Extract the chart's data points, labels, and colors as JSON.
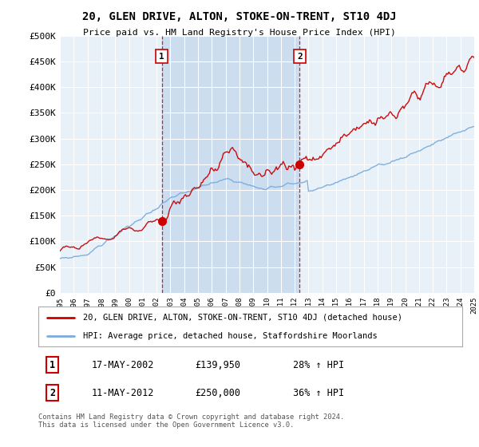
{
  "title": "20, GLEN DRIVE, ALTON, STOKE-ON-TRENT, ST10 4DJ",
  "subtitle": "Price paid vs. HM Land Registry's House Price Index (HPI)",
  "ylim": [
    0,
    500000
  ],
  "yticks": [
    0,
    50000,
    100000,
    150000,
    200000,
    250000,
    300000,
    350000,
    400000,
    450000,
    500000
  ],
  "ytick_labels": [
    "£0",
    "£50K",
    "£100K",
    "£150K",
    "£200K",
    "£250K",
    "£300K",
    "£350K",
    "£400K",
    "£450K",
    "£500K"
  ],
  "sale1_date": 2002.37,
  "sale1_price": 139950,
  "sale1_label": "1",
  "sale2_date": 2012.36,
  "sale2_price": 250000,
  "sale2_label": "2",
  "line_color_property": "#cc0000",
  "line_color_hpi": "#7aaddd",
  "bg_color": "#e8f0f8",
  "shade_color": "#ccddef",
  "grid_color": "#ffffff",
  "legend_line1": "20, GLEN DRIVE, ALTON, STOKE-ON-TRENT, ST10 4DJ (detached house)",
  "legend_line2": "HPI: Average price, detached house, Staffordshire Moorlands",
  "table_row1": [
    "1",
    "17-MAY-2002",
    "£139,950",
    "28% ↑ HPI"
  ],
  "table_row2": [
    "2",
    "11-MAY-2012",
    "£250,000",
    "36% ↑ HPI"
  ],
  "footnote": "Contains HM Land Registry data © Crown copyright and database right 2024.\nThis data is licensed under the Open Government Licence v3.0.",
  "xmin": 1995,
  "xmax": 2025
}
